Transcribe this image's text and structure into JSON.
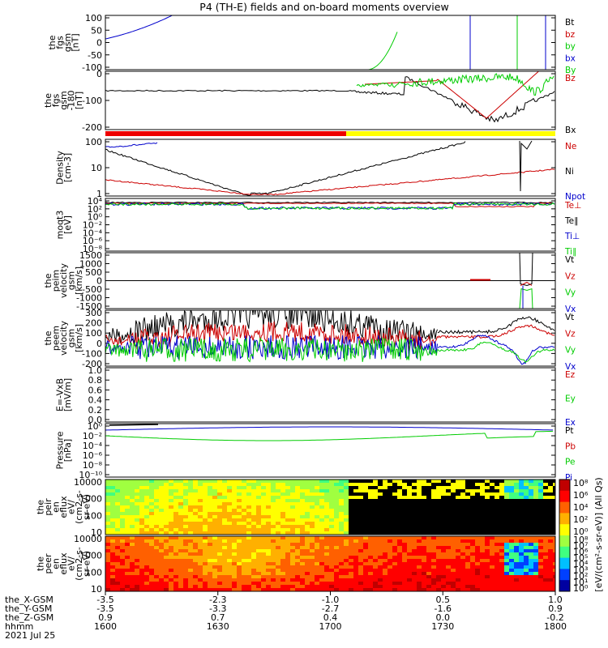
{
  "chart_data": {
    "type": "line",
    "title": "P4 (TH-E) fields and on-board moments overview",
    "panels": [
      {
        "ylabel": [
          "the",
          "fgs",
          "gsm",
          "[nT]"
        ],
        "ytick_labels": [
          "100",
          "50",
          "0",
          "-50",
          "-100"
        ],
        "ylim": [
          -100,
          100
        ],
        "legend": [
          {
            "name": "Bt",
            "color": "#000000"
          },
          {
            "name": "bz",
            "color": "#cc0000"
          },
          {
            "name": "by",
            "color": "#00cc00"
          },
          {
            "name": "bx",
            "color": "#0000cc"
          },
          {
            "name": "By",
            "color": "#00cc00"
          }
        ]
      },
      {
        "ylabel": [
          "the",
          "fgs",
          "gsm",
          "-180",
          "[nT]"
        ],
        "ytick_labels": [
          "0",
          "-100",
          "-200"
        ],
        "ylim": [
          -230,
          60
        ],
        "legend": [
          {
            "name": "Bz",
            "color": "#cc0000"
          },
          {
            "name": "Bx",
            "color": "#000000"
          }
        ]
      },
      {
        "ylabel": [
          "Density",
          "[cm-3]"
        ],
        "ytick_labels": [
          "100",
          "10",
          "1"
        ],
        "scale": "log",
        "legend": [
          {
            "name": "Ne",
            "color": "#cc0000"
          },
          {
            "name": "Ni",
            "color": "#000000"
          },
          {
            "name": "Npot",
            "color": "#0000cc"
          }
        ]
      },
      {
        "ylabel": [
          "moqt3",
          "[eV]"
        ],
        "ytick_labels": [
          "10⁴",
          "10²",
          "10⁰",
          "10⁻²",
          "10⁻⁴",
          "10⁻⁶",
          "10⁻⁸"
        ],
        "scale": "log",
        "legend": [
          {
            "name": "Te⊥",
            "color": "#cc0000"
          },
          {
            "name": "Te∥",
            "color": "#000000"
          },
          {
            "name": "Ti⊥",
            "color": "#0000cc"
          },
          {
            "name": "Ti∥",
            "color": "#00cc00"
          }
        ]
      },
      {
        "ylabel": [
          "the",
          "peim",
          "velocity",
          "gsm",
          "[km/s]"
        ],
        "ytick_labels": [
          "1500",
          "1000",
          "500",
          "0",
          "-500",
          "-1000",
          "-1500"
        ],
        "ylim": [
          -1500,
          1500
        ],
        "legend": [
          {
            "name": "Vt",
            "color": "#000000"
          },
          {
            "name": "Vz",
            "color": "#cc0000"
          },
          {
            "name": "Vy",
            "color": "#00cc00"
          },
          {
            "name": "Vx",
            "color": "#0000cc"
          }
        ]
      },
      {
        "ylabel": [
          "the",
          "peem",
          "velocity",
          "gsm",
          "[km/s]"
        ],
        "ytick_labels": [
          "300",
          "200",
          "100",
          "0",
          "-100",
          "-200"
        ],
        "ylim": [
          -200,
          300
        ],
        "legend": [
          {
            "name": "Vt",
            "color": "#000000"
          },
          {
            "name": "Vz",
            "color": "#cc0000"
          },
          {
            "name": "Vy",
            "color": "#00cc00"
          },
          {
            "name": "Vx",
            "color": "#0000cc"
          }
        ]
      },
      {
        "ylabel": [
          "E=-VxB",
          "[mV/m]"
        ],
        "ytick_labels": [
          "1.0",
          "0.8",
          "0.6",
          "0.4",
          "0.2",
          "0.0"
        ],
        "ylim": [
          0,
          1
        ],
        "legend": [
          {
            "name": "Ez",
            "color": "#cc0000"
          },
          {
            "name": "Ey",
            "color": "#00cc00"
          },
          {
            "name": "Ex",
            "color": "#0000cc"
          }
        ]
      },
      {
        "ylabel": [
          "Pressure",
          "[nPa]"
        ],
        "ytick_labels": [
          "10⁰",
          "10⁻²",
          "10⁻⁴",
          "10⁻⁶",
          "10⁻⁸",
          "10⁻¹⁰"
        ],
        "scale": "log",
        "legend": [
          {
            "name": "Pt",
            "color": "#000000"
          },
          {
            "name": "Pb",
            "color": "#cc0000"
          },
          {
            "name": "Pe",
            "color": "#00cc00"
          },
          {
            "name": "Pi",
            "color": "#0000cc"
          }
        ]
      },
      {
        "ylabel": [
          "the",
          "peir",
          "en",
          "eflux",
          "eV/",
          "(cm2-s-",
          "sr-eV)"
        ],
        "ytick_labels": [
          "10000",
          "1000",
          "100",
          "10"
        ],
        "scale": "log"
      },
      {
        "ylabel": [
          "the",
          "peer",
          "en",
          "eflux",
          "eV/",
          "(cm2-s-",
          "sr-eV)"
        ],
        "ytick_labels": [
          "10000",
          "1000",
          "100",
          "10"
        ],
        "scale": "log"
      }
    ],
    "colorbar": {
      "ticks_top": [
        "10⁸",
        "10⁶",
        "10⁴",
        "10²",
        "10⁰"
      ],
      "ticks_bottom": [
        "10⁸",
        "10⁷",
        "10⁶",
        "10⁵",
        "10⁴",
        "10³",
        "10²",
        "10¹",
        "10⁰"
      ],
      "label": "[eV/(cm²-s-sr-eV)] (All Qs)"
    },
    "x_axis": {
      "row_labels": [
        "the_X-GSM",
        "the_Y-GSM",
        "the_Z-GSM",
        "hhmm",
        "2021 Jul 25"
      ],
      "columns": [
        {
          "x": "-3.5",
          "y": "-3.5",
          "z": "0.9",
          "t": "1600"
        },
        {
          "x": "-2.3",
          "y": "-3.3",
          "z": "0.7",
          "t": "1630"
        },
        {
          "x": "-1.0",
          "y": "-2.7",
          "z": "0.4",
          "t": "1700"
        },
        {
          "x": "0.5",
          "y": "-1.6",
          "z": "0.0",
          "t": "1730"
        },
        {
          "x": "1.0",
          "y": "0.9",
          "z": "-0.2",
          "t": "1800"
        }
      ]
    },
    "colors": {
      "red": "#cc0000",
      "green": "#00cc00",
      "blue": "#0000cc",
      "black": "#000000",
      "status_red": "#ee0000",
      "status_yellow": "#ffff00"
    }
  }
}
